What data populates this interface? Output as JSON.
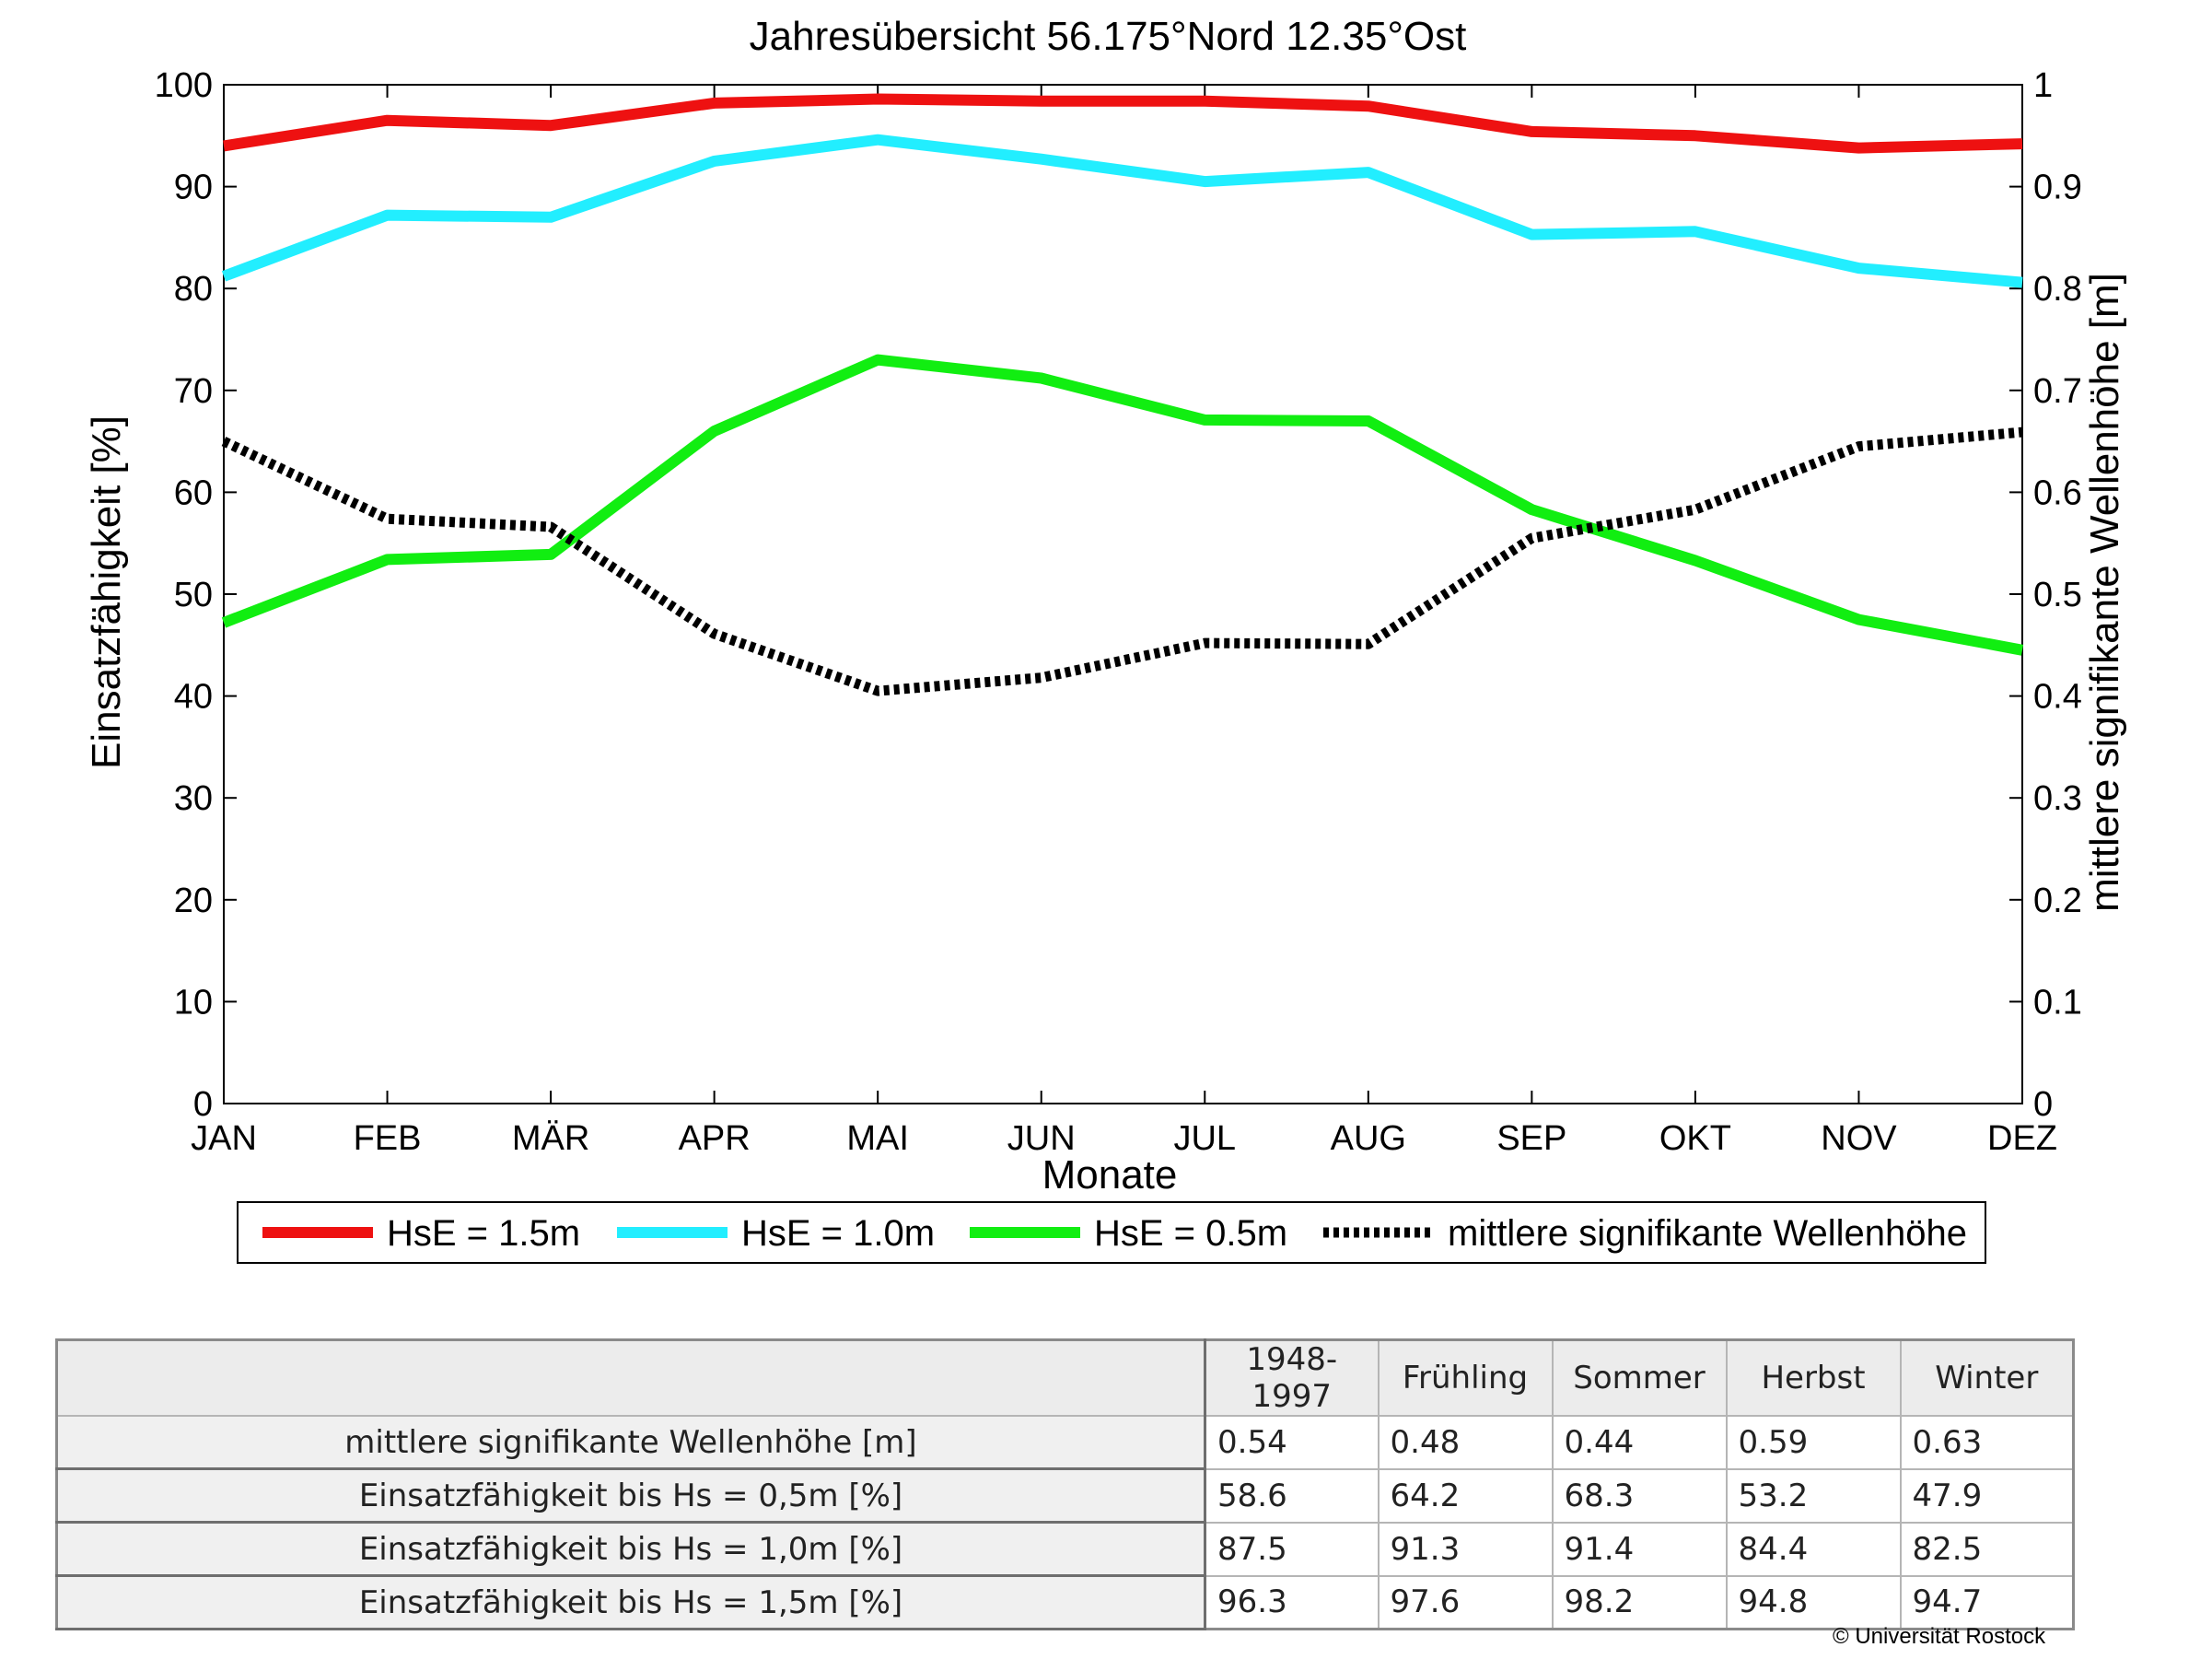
{
  "chart_data": {
    "type": "line",
    "title": "Jahresübersicht  56.175°Nord  12.35°Ost",
    "xlabel": "Monate",
    "ylabel_left": "Einsatzfähigkeit [%]",
    "ylabel_right": "mittlere signifikante Wellenhöhe [m]",
    "categories": [
      "JAN",
      "FEB",
      "MÄR",
      "APR",
      "MAI",
      "JUN",
      "JUL",
      "AUG",
      "SEP",
      "OKT",
      "NOV",
      "DEZ"
    ],
    "ylim_left": [
      0,
      100
    ],
    "yticks_left": [
      "0",
      "10",
      "20",
      "30",
      "40",
      "50",
      "60",
      "70",
      "80",
      "90",
      "100"
    ],
    "ylim_right": [
      0,
      1
    ],
    "yticks_right": [
      "0",
      "0.1",
      "0.2",
      "0.3",
      "0.4",
      "0.5",
      "0.6",
      "0.7",
      "0.8",
      "0.9",
      "1"
    ],
    "grid": false,
    "legend_position": "bottom",
    "series": [
      {
        "name": "HsE = 1.5m",
        "axis": "left",
        "color": "#ee1111",
        "style": "solid",
        "values": [
          94.0,
          96.5,
          96.0,
          98.2,
          98.6,
          98.4,
          98.4,
          97.9,
          95.4,
          95.0,
          93.8,
          94.2
        ]
      },
      {
        "name": "HsE = 1.0m",
        "axis": "left",
        "color": "#22eeff",
        "style": "solid",
        "values": [
          81.2,
          87.2,
          87.0,
          92.5,
          94.6,
          92.7,
          90.5,
          91.4,
          85.3,
          85.6,
          82.0,
          80.6
        ]
      },
      {
        "name": "HsE = 0.5m",
        "axis": "left",
        "color": "#11ee11",
        "style": "solid",
        "values": [
          47.2,
          53.4,
          53.9,
          66.0,
          73.0,
          71.2,
          67.1,
          67.0,
          58.3,
          53.3,
          47.5,
          44.5
        ]
      },
      {
        "name": "mittlere signifikante Wellenhöhe",
        "axis": "right",
        "color": "#000000",
        "style": "dotted",
        "values": [
          0.65,
          0.574,
          0.566,
          0.461,
          0.405,
          0.418,
          0.452,
          0.451,
          0.555,
          0.583,
          0.645,
          0.659
        ]
      }
    ]
  },
  "table": {
    "columns": [
      "1948-1997",
      "Frühling",
      "Sommer",
      "Herbst",
      "Winter"
    ],
    "rows": [
      {
        "label": "mittlere signifikante Wellenhöhe [m]",
        "values": [
          "0.54",
          "0.48",
          "0.44",
          "0.59",
          "0.63"
        ]
      },
      {
        "label": "Einsatzfähigkeit bis Hs = 0,5m [%]",
        "values": [
          "58.6",
          "64.2",
          "68.3",
          "53.2",
          "47.9"
        ]
      },
      {
        "label": "Einsatzfähigkeit bis Hs = 1,0m [%]",
        "values": [
          "87.5",
          "91.3",
          "91.4",
          "84.4",
          "82.5"
        ]
      },
      {
        "label": "Einsatzfähigkeit bis Hs = 1,5m [%]",
        "values": [
          "96.3",
          "97.6",
          "98.2",
          "94.8",
          "94.7"
        ]
      }
    ]
  },
  "footer": {
    "copyright": "© Universität Rostock"
  }
}
